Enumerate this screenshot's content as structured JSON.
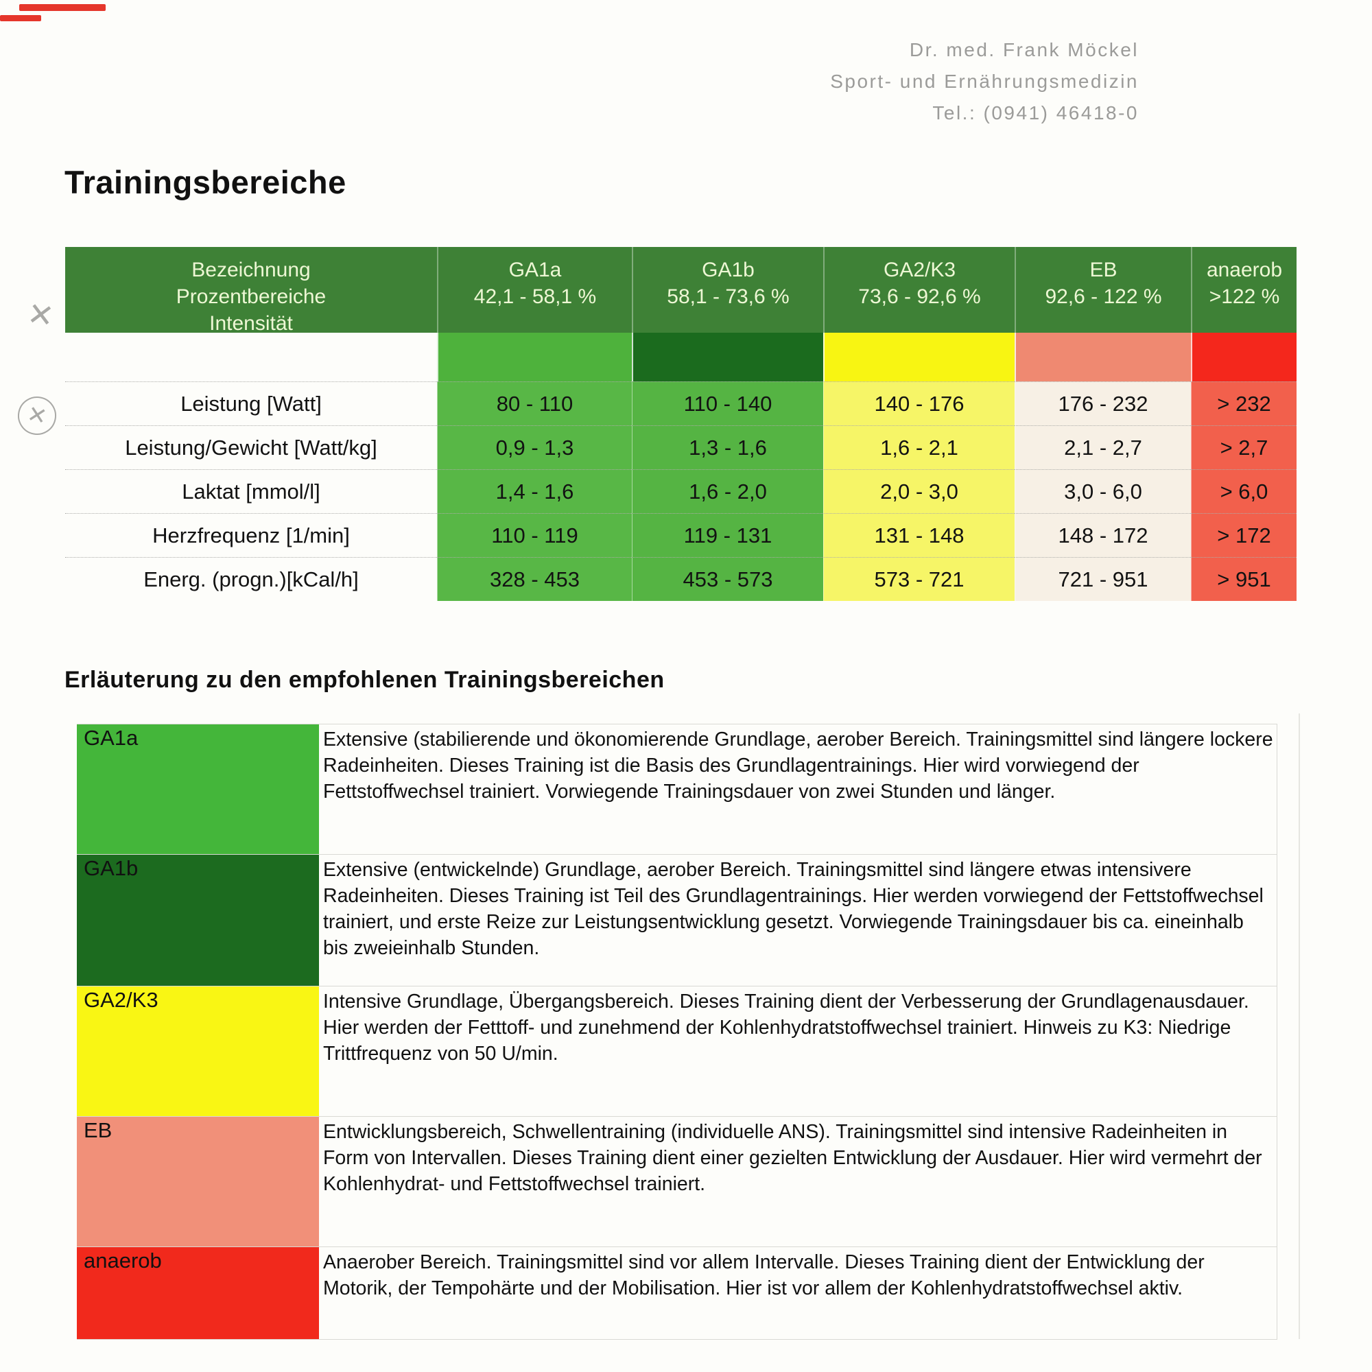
{
  "letterhead": {
    "line1": "Dr. med. Frank Möckel",
    "line2": "Sport- und Ernährungsmedizin",
    "line3": "Tel.: (0941) 46418-0"
  },
  "title": "Trainingsbereiche",
  "colors": {
    "header_green": "#3e8136",
    "header_text": "#edf7d4",
    "mark_red": "#e5362b",
    "mark_gray": "#a9a9a6"
  },
  "zones_table": {
    "corner_header_lines": [
      "Bezeichnung",
      "Prozentbereiche",
      "Intensität"
    ],
    "zones": [
      {
        "name": "GA1a",
        "range": "42,1 - 58,1 %",
        "swatch_color": "#4eb23c",
        "cell_color": "#58b746"
      },
      {
        "name": "GA1b",
        "range": "58,1 - 73,6 %",
        "swatch_color": "#1b6b1e",
        "cell_color": "#55b443"
      },
      {
        "name": "GA2/K3",
        "range": "73,6 - 92,6 %",
        "swatch_color": "#f8f512",
        "cell_color": "#f6f567"
      },
      {
        "name": "EB",
        "range": "92,6 - 122 %",
        "swatch_color": "#ef8971",
        "cell_color": "#f7f0e5"
      },
      {
        "name": "anaerob",
        "range": ">122 %",
        "swatch_color": "#f4271c",
        "cell_color": "#f2604c"
      }
    ],
    "rows": [
      {
        "label": "Leistung [Watt]",
        "values": [
          "80 - 110",
          "110 - 140",
          "140 - 176",
          "176 - 232",
          "> 232"
        ]
      },
      {
        "label": "Leistung/Gewicht [Watt/kg]",
        "values": [
          "0,9 - 1,3",
          "1,3 - 1,6",
          "1,6 - 2,1",
          "2,1 - 2,7",
          "> 2,7"
        ]
      },
      {
        "label": "Laktat [mmol/l]",
        "values": [
          "1,4 - 1,6",
          "1,6 - 2,0",
          "2,0 - 3,0",
          "3,0 - 6,0",
          "> 6,0"
        ]
      },
      {
        "label": "Herzfrequenz [1/min]",
        "values": [
          "110 - 119",
          "119 - 131",
          "131 - 148",
          "148 - 172",
          "> 172"
        ]
      },
      {
        "label": "Energ. (progn.)[kCal/h]",
        "values": [
          "328 - 453",
          "453 - 573",
          "573 - 721",
          "721 - 951",
          "> 951"
        ]
      }
    ]
  },
  "legend": {
    "title": "Erläuterung zu den empfohlenen Trainingsbereichen",
    "entries": [
      {
        "label": "GA1a",
        "color": "#44b63a",
        "text": "Extensive (stabilierende und ökonomierende Grundlage, aerober Bereich. Trainingsmittel sind längere lockere Radeinheiten. Dieses Training ist die Basis des Grundlagentrainings. Hier wird vorwiegend der Fettstoffwechsel trainiert. Vorwiegende Trainingsdauer von zwei Stunden und länger."
      },
      {
        "label": "GA1b",
        "color": "#1c6b1f",
        "text": "Extensive (entwickelnde) Grundlage, aerober Bereich. Trainingsmittel sind längere etwas intensivere Radeinheiten. Dieses Training ist Teil des Grundlagentrainings. Hier werden vorwiegend der Fettstoffwechsel trainiert, und erste Reize zur Leistungsentwicklung gesetzt. Vorwiegende Trainingsdauer bis ca. eineinhalb bis zweieinhalb Stunden."
      },
      {
        "label": "GA2/K3",
        "color": "#f9f614",
        "text": "Intensive Grundlage, Übergangsbereich. Dieses Training dient der Verbesserung der Grundlagenausdauer. Hier werden der Fetttoff- und zunehmend der Kohlenhydratstoffwechsel trainiert. Hinweis zu K3: Niedrige Trittfrequenz von 50 U/min."
      },
      {
        "label": "EB",
        "color": "#f19079",
        "text": "Entwicklungsbereich, Schwellentraining (individuelle ANS). Trainingsmittel sind intensive Radeinheiten in Form von Intervallen. Dieses Training dient einer gezielten Entwicklung der Ausdauer. Hier wird vermehrt der Kohlenhydrat- und Fettstoffwechsel trainiert."
      },
      {
        "label": "anaerob",
        "color": "#f1291c",
        "text": "Anaerober Bereich. Trainingsmittel sind vor allem Intervalle. Dieses Training dient der Entwicklung der Motorik, der Tempohärte und der Mobilisation. Hier ist vor allem der Kohlenhydratstoffwechsel aktiv."
      }
    ]
  }
}
